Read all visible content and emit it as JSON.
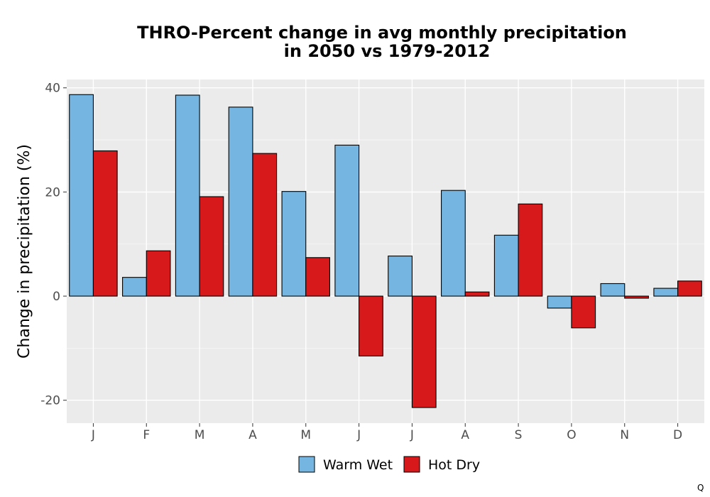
{
  "chart_data": {
    "type": "bar",
    "title_lines": [
      "THRO-Percent change in avg monthly precipitation",
      "in 2050 vs 1979-2012"
    ],
    "xlabel": "",
    "ylabel": "Change in precipitation (%)",
    "categories": [
      "J",
      "F",
      "M",
      "A",
      "M",
      "J",
      "J",
      "A",
      "S",
      "O",
      "N",
      "D"
    ],
    "series": [
      {
        "name": "Warm Wet",
        "color": "#74b6e1",
        "values": [
          38.7,
          3.6,
          38.6,
          36.3,
          20.1,
          29.0,
          7.7,
          20.3,
          11.7,
          -2.3,
          2.4,
          1.5
        ]
      },
      {
        "name": "Hot Dry",
        "color": "#d7191c",
        "values": [
          27.9,
          8.7,
          19.1,
          27.4,
          7.4,
          -11.5,
          -21.4,
          0.8,
          17.7,
          -6.1,
          -0.4,
          2.9
        ]
      }
    ],
    "ylim": [
      -24.4,
      41.6
    ],
    "yticks": [
      -20,
      0,
      20,
      40
    ],
    "grid": true,
    "legend_position": "bottom"
  },
  "corner_mark": "Q"
}
